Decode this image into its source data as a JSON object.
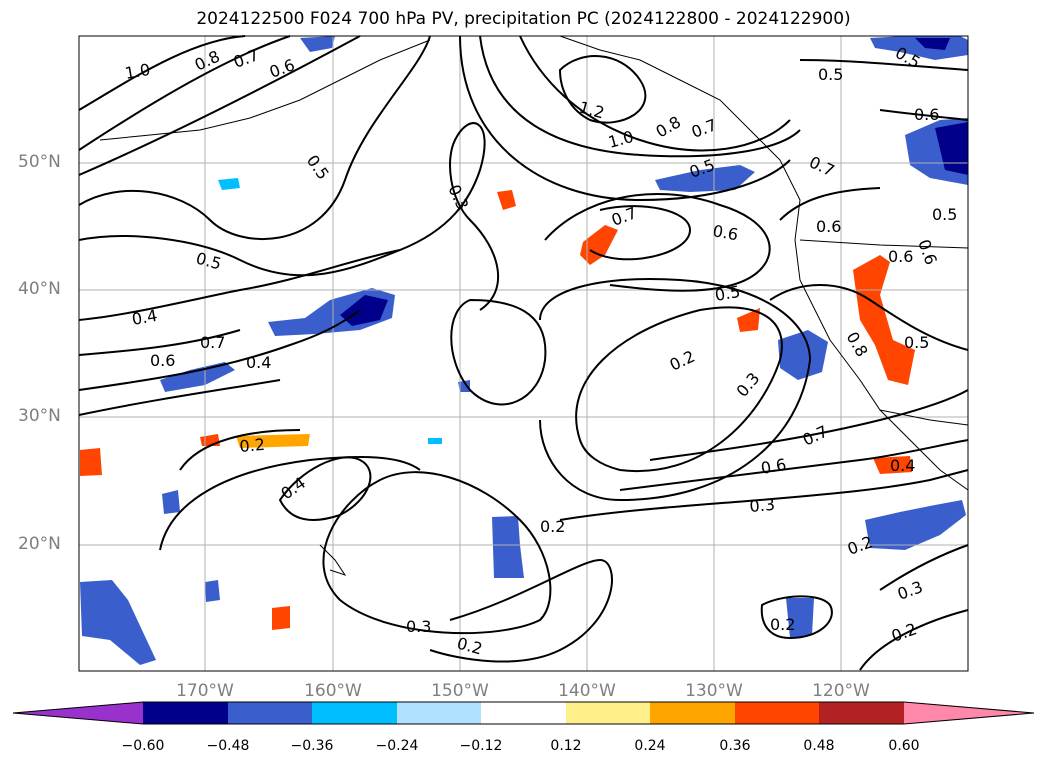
{
  "title": "2024122500 F024 700 hPa PV, precipitation PC (2024122800 - 2024122900)",
  "latitude_labels": [
    "50°N",
    "40°N",
    "30°N",
    "20°N"
  ],
  "longitude_labels": [
    "170°W",
    "160°W",
    "150°W",
    "140°W",
    "130°W",
    "120°W"
  ],
  "colorbar": {
    "ticks": [
      "−0.60",
      "−0.48",
      "−0.36",
      "−0.24",
      "−0.12",
      "0.12",
      "0.24",
      "0.36",
      "0.48",
      "0.60"
    ],
    "colors": [
      "#9932cc",
      "#00008b",
      "#3a5fcd",
      "#00bfff",
      "#b0e2ff",
      "#ffffff",
      "#fff08c",
      "#ffa500",
      "#ff4500",
      "#b22222",
      "#ff88aa"
    ]
  },
  "contour_labels": {
    "c1": "1.0",
    "c2": "0.8",
    "c3": "0.7",
    "c4": "0.6",
    "c5": "0.5",
    "c6": "0.3",
    "c7": "0.5",
    "c8": "0.4",
    "c9": "0.7",
    "c10": "0.6",
    "c11": "0.4",
    "c12": "0.2",
    "c13": "0.4",
    "c14": "1.2",
    "c15": "1.0",
    "c16": "0.8",
    "c17": "0.7",
    "c18": "0.5",
    "c19": "0.7",
    "c20": "0.6",
    "c21": "0.5",
    "c22": "0.2",
    "c23": "0.3",
    "c24": "0.7",
    "c25": "0.6",
    "c26": "0.3",
    "c27": "0.2",
    "c28": "0.3",
    "c29": "0.2",
    "c30": "0.5",
    "c31": "0.6",
    "c32": "0.7",
    "c33": "0.6",
    "c34": "0.6",
    "c35": "0.5",
    "c36": "0.6",
    "c37": "0.8",
    "c38": "0.5",
    "c39": "0.4",
    "c40": "0.2",
    "c41": "0.3",
    "c42": "0.2",
    "c43": "0.2",
    "c44": "0.5"
  }
}
